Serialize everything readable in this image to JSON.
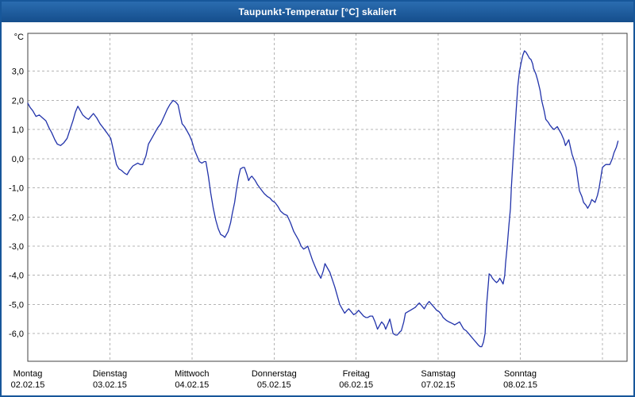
{
  "title": "Taupunkt-Temperatur [°C] skaliert",
  "colors": {
    "titlebar": "#17579a",
    "border": "#17579a",
    "background": "#ffffff",
    "grid": "#b4b4b4",
    "frame": "#404040",
    "line": "#2233aa"
  },
  "chart_data": {
    "type": "line",
    "title": "Taupunkt-Temperatur [°C] skaliert",
    "xlabel": "",
    "ylabel": "°C",
    "ylim": [
      -6.95,
      4.3
    ],
    "xlim": [
      0,
      7.3
    ],
    "grid": true,
    "legend": "none",
    "yticks": [
      {
        "value": 3,
        "label": "3,0"
      },
      {
        "value": 2,
        "label": "2,0"
      },
      {
        "value": 1,
        "label": "1,0"
      },
      {
        "value": 0,
        "label": "0,0"
      },
      {
        "value": -1,
        "label": "-1,0"
      },
      {
        "value": -2,
        "label": "-2,0"
      },
      {
        "value": -3,
        "label": "-3,0"
      },
      {
        "value": -4,
        "label": "-4,0"
      },
      {
        "value": -5,
        "label": "-5,0"
      },
      {
        "value": -6,
        "label": "-6,0"
      }
    ],
    "xgridlines": [
      1,
      2,
      3,
      4,
      5,
      6,
      7
    ],
    "xticks": [
      {
        "t": 0,
        "day": "Montag",
        "date": "02.02.15"
      },
      {
        "t": 1,
        "day": "Dienstag",
        "date": "03.02.15"
      },
      {
        "t": 2,
        "day": "Mittwoch",
        "date": "04.02.15"
      },
      {
        "t": 3,
        "day": "Donnerstag",
        "date": "05.02.15"
      },
      {
        "t": 4,
        "day": "Freitag",
        "date": "06.02.15"
      },
      {
        "t": 5,
        "day": "Samstag",
        "date": "07.02.15"
      },
      {
        "t": 6,
        "day": "Sonntag",
        "date": "08.02.15"
      }
    ],
    "series": [
      {
        "name": "Taupunkt-Temperatur",
        "color": "#2233aa",
        "points": [
          [
            0.0,
            1.9
          ],
          [
            0.03,
            1.75
          ],
          [
            0.06,
            1.65
          ],
          [
            0.1,
            1.45
          ],
          [
            0.14,
            1.5
          ],
          [
            0.18,
            1.4
          ],
          [
            0.22,
            1.3
          ],
          [
            0.26,
            1.05
          ],
          [
            0.29,
            0.9
          ],
          [
            0.33,
            0.65
          ],
          [
            0.36,
            0.5
          ],
          [
            0.4,
            0.45
          ],
          [
            0.44,
            0.55
          ],
          [
            0.48,
            0.7
          ],
          [
            0.52,
            1.05
          ],
          [
            0.55,
            1.3
          ],
          [
            0.58,
            1.6
          ],
          [
            0.61,
            1.8
          ],
          [
            0.64,
            1.65
          ],
          [
            0.67,
            1.5
          ],
          [
            0.71,
            1.4
          ],
          [
            0.74,
            1.35
          ],
          [
            0.77,
            1.45
          ],
          [
            0.8,
            1.55
          ],
          [
            0.84,
            1.4
          ],
          [
            0.88,
            1.2
          ],
          [
            0.92,
            1.05
          ],
          [
            0.96,
            0.9
          ],
          [
            1.01,
            0.7
          ],
          [
            1.05,
            0.2
          ],
          [
            1.08,
            -0.2
          ],
          [
            1.11,
            -0.35
          ],
          [
            1.14,
            -0.4
          ],
          [
            1.18,
            -0.5
          ],
          [
            1.21,
            -0.55
          ],
          [
            1.24,
            -0.4
          ],
          [
            1.28,
            -0.25
          ],
          [
            1.31,
            -0.2
          ],
          [
            1.34,
            -0.15
          ],
          [
            1.37,
            -0.2
          ],
          [
            1.4,
            -0.2
          ],
          [
            1.44,
            0.1
          ],
          [
            1.47,
            0.5
          ],
          [
            1.51,
            0.7
          ],
          [
            1.55,
            0.9
          ],
          [
            1.58,
            1.05
          ],
          [
            1.62,
            1.2
          ],
          [
            1.66,
            1.45
          ],
          [
            1.7,
            1.7
          ],
          [
            1.73,
            1.85
          ],
          [
            1.77,
            2.0
          ],
          [
            1.8,
            1.95
          ],
          [
            1.83,
            1.85
          ],
          [
            1.86,
            1.45
          ],
          [
            1.88,
            1.2
          ],
          [
            1.91,
            1.1
          ],
          [
            1.93,
            1.0
          ],
          [
            1.97,
            0.8
          ],
          [
            2.0,
            0.6
          ],
          [
            2.03,
            0.3
          ],
          [
            2.06,
            0.1
          ],
          [
            2.09,
            -0.1
          ],
          [
            2.12,
            -0.15
          ],
          [
            2.15,
            -0.1
          ],
          [
            2.17,
            -0.1
          ],
          [
            2.2,
            -0.6
          ],
          [
            2.23,
            -1.2
          ],
          [
            2.26,
            -1.7
          ],
          [
            2.29,
            -2.1
          ],
          [
            2.32,
            -2.4
          ],
          [
            2.35,
            -2.6
          ],
          [
            2.38,
            -2.65
          ],
          [
            2.4,
            -2.7
          ],
          [
            2.42,
            -2.6
          ],
          [
            2.44,
            -2.5
          ],
          [
            2.47,
            -2.2
          ],
          [
            2.49,
            -1.9
          ],
          [
            2.52,
            -1.5
          ],
          [
            2.54,
            -1.1
          ],
          [
            2.57,
            -0.6
          ],
          [
            2.59,
            -0.35
          ],
          [
            2.62,
            -0.3
          ],
          [
            2.64,
            -0.3
          ],
          [
            2.67,
            -0.55
          ],
          [
            2.69,
            -0.75
          ],
          [
            2.71,
            -0.65
          ],
          [
            2.73,
            -0.6
          ],
          [
            2.77,
            -0.75
          ],
          [
            2.8,
            -0.9
          ],
          [
            2.84,
            -1.05
          ],
          [
            2.88,
            -1.2
          ],
          [
            2.92,
            -1.3
          ],
          [
            2.95,
            -1.35
          ],
          [
            2.98,
            -1.45
          ],
          [
            3.01,
            -1.5
          ],
          [
            3.05,
            -1.65
          ],
          [
            3.08,
            -1.8
          ],
          [
            3.12,
            -1.9
          ],
          [
            3.16,
            -1.95
          ],
          [
            3.2,
            -2.2
          ],
          [
            3.24,
            -2.5
          ],
          [
            3.27,
            -2.65
          ],
          [
            3.3,
            -2.8
          ],
          [
            3.33,
            -3.0
          ],
          [
            3.36,
            -3.1
          ],
          [
            3.39,
            -3.05
          ],
          [
            3.41,
            -3.0
          ],
          [
            3.44,
            -3.25
          ],
          [
            3.47,
            -3.5
          ],
          [
            3.5,
            -3.7
          ],
          [
            3.53,
            -3.9
          ],
          [
            3.55,
            -4.0
          ],
          [
            3.57,
            -4.1
          ],
          [
            3.6,
            -3.85
          ],
          [
            3.62,
            -3.6
          ],
          [
            3.65,
            -3.75
          ],
          [
            3.68,
            -3.9
          ],
          [
            3.71,
            -4.15
          ],
          [
            3.74,
            -4.4
          ],
          [
            3.77,
            -4.7
          ],
          [
            3.8,
            -5.0
          ],
          [
            3.83,
            -5.15
          ],
          [
            3.86,
            -5.3
          ],
          [
            3.89,
            -5.2
          ],
          [
            3.91,
            -5.15
          ],
          [
            3.94,
            -5.25
          ],
          [
            3.97,
            -5.35
          ],
          [
            4.0,
            -5.3
          ],
          [
            4.03,
            -5.2
          ],
          [
            4.06,
            -5.3
          ],
          [
            4.09,
            -5.4
          ],
          [
            4.12,
            -5.45
          ],
          [
            4.14,
            -5.45
          ],
          [
            4.17,
            -5.4
          ],
          [
            4.2,
            -5.4
          ],
          [
            4.23,
            -5.6
          ],
          [
            4.26,
            -5.85
          ],
          [
            4.29,
            -5.7
          ],
          [
            4.31,
            -5.6
          ],
          [
            4.34,
            -5.7
          ],
          [
            4.36,
            -5.85
          ],
          [
            4.39,
            -5.65
          ],
          [
            4.41,
            -5.5
          ],
          [
            4.43,
            -5.75
          ],
          [
            4.45,
            -6.0
          ],
          [
            4.48,
            -6.05
          ],
          [
            4.5,
            -6.05
          ],
          [
            4.53,
            -5.95
          ],
          [
            4.55,
            -5.9
          ],
          [
            4.58,
            -5.6
          ],
          [
            4.6,
            -5.3
          ],
          [
            4.63,
            -5.25
          ],
          [
            4.66,
            -5.2
          ],
          [
            4.69,
            -5.15
          ],
          [
            4.72,
            -5.1
          ],
          [
            4.75,
            -5.0
          ],
          [
            4.77,
            -4.95
          ],
          [
            4.8,
            -5.05
          ],
          [
            4.83,
            -5.15
          ],
          [
            4.86,
            -5.0
          ],
          [
            4.89,
            -4.9
          ],
          [
            4.92,
            -5.0
          ],
          [
            4.95,
            -5.1
          ],
          [
            4.98,
            -5.2
          ],
          [
            5.01,
            -5.25
          ],
          [
            5.04,
            -5.35
          ],
          [
            5.06,
            -5.45
          ],
          [
            5.1,
            -5.55
          ],
          [
            5.13,
            -5.6
          ],
          [
            5.17,
            -5.65
          ],
          [
            5.2,
            -5.7
          ],
          [
            5.23,
            -5.65
          ],
          [
            5.26,
            -5.6
          ],
          [
            5.29,
            -5.75
          ],
          [
            5.31,
            -5.85
          ],
          [
            5.34,
            -5.9
          ],
          [
            5.37,
            -6.0
          ],
          [
            5.4,
            -6.1
          ],
          [
            5.43,
            -6.2
          ],
          [
            5.46,
            -6.3
          ],
          [
            5.49,
            -6.4
          ],
          [
            5.51,
            -6.45
          ],
          [
            5.53,
            -6.45
          ],
          [
            5.55,
            -6.3
          ],
          [
            5.57,
            -6.0
          ],
          [
            5.59,
            -5.0
          ],
          [
            5.61,
            -4.3
          ],
          [
            5.62,
            -3.95
          ],
          [
            5.64,
            -4.0
          ],
          [
            5.66,
            -4.1
          ],
          [
            5.69,
            -4.2
          ],
          [
            5.71,
            -4.25
          ],
          [
            5.73,
            -4.2
          ],
          [
            5.75,
            -4.1
          ],
          [
            5.77,
            -4.2
          ],
          [
            5.79,
            -4.3
          ],
          [
            5.81,
            -4.0
          ],
          [
            5.82,
            -3.6
          ],
          [
            5.84,
            -3.0
          ],
          [
            5.86,
            -2.3
          ],
          [
            5.88,
            -1.7
          ],
          [
            5.89,
            -1.0
          ],
          [
            5.91,
            -0.1
          ],
          [
            5.93,
            0.8
          ],
          [
            5.95,
            1.7
          ],
          [
            5.97,
            2.5
          ],
          [
            5.99,
            3.0
          ],
          [
            6.01,
            3.3
          ],
          [
            6.03,
            3.55
          ],
          [
            6.05,
            3.7
          ],
          [
            6.07,
            3.65
          ],
          [
            6.09,
            3.55
          ],
          [
            6.11,
            3.45
          ],
          [
            6.13,
            3.4
          ],
          [
            6.15,
            3.25
          ],
          [
            6.16,
            3.1
          ],
          [
            6.19,
            2.9
          ],
          [
            6.21,
            2.7
          ],
          [
            6.24,
            2.35
          ],
          [
            6.26,
            2.0
          ],
          [
            6.29,
            1.65
          ],
          [
            6.31,
            1.35
          ],
          [
            6.34,
            1.25
          ],
          [
            6.36,
            1.15
          ],
          [
            6.39,
            1.05
          ],
          [
            6.41,
            1.0
          ],
          [
            6.43,
            1.05
          ],
          [
            6.45,
            1.1
          ],
          [
            6.48,
            0.95
          ],
          [
            6.5,
            0.85
          ],
          [
            6.53,
            0.65
          ],
          [
            6.55,
            0.45
          ],
          [
            6.57,
            0.55
          ],
          [
            6.59,
            0.65
          ],
          [
            6.61,
            0.4
          ],
          [
            6.63,
            0.15
          ],
          [
            6.66,
            -0.1
          ],
          [
            6.68,
            -0.3
          ],
          [
            6.7,
            -0.7
          ],
          [
            6.72,
            -1.1
          ],
          [
            6.75,
            -1.3
          ],
          [
            6.77,
            -1.5
          ],
          [
            6.8,
            -1.6
          ],
          [
            6.82,
            -1.7
          ],
          [
            6.85,
            -1.55
          ],
          [
            6.87,
            -1.4
          ],
          [
            6.89,
            -1.45
          ],
          [
            6.91,
            -1.5
          ],
          [
            6.94,
            -1.25
          ],
          [
            6.96,
            -1.0
          ],
          [
            6.98,
            -0.65
          ],
          [
            7.0,
            -0.3
          ],
          [
            7.02,
            -0.25
          ],
          [
            7.04,
            -0.2
          ],
          [
            7.07,
            -0.2
          ],
          [
            7.09,
            -0.2
          ],
          [
            7.12,
            0.0
          ],
          [
            7.14,
            0.2
          ],
          [
            7.17,
            0.4
          ],
          [
            7.19,
            0.6
          ]
        ]
      }
    ]
  }
}
